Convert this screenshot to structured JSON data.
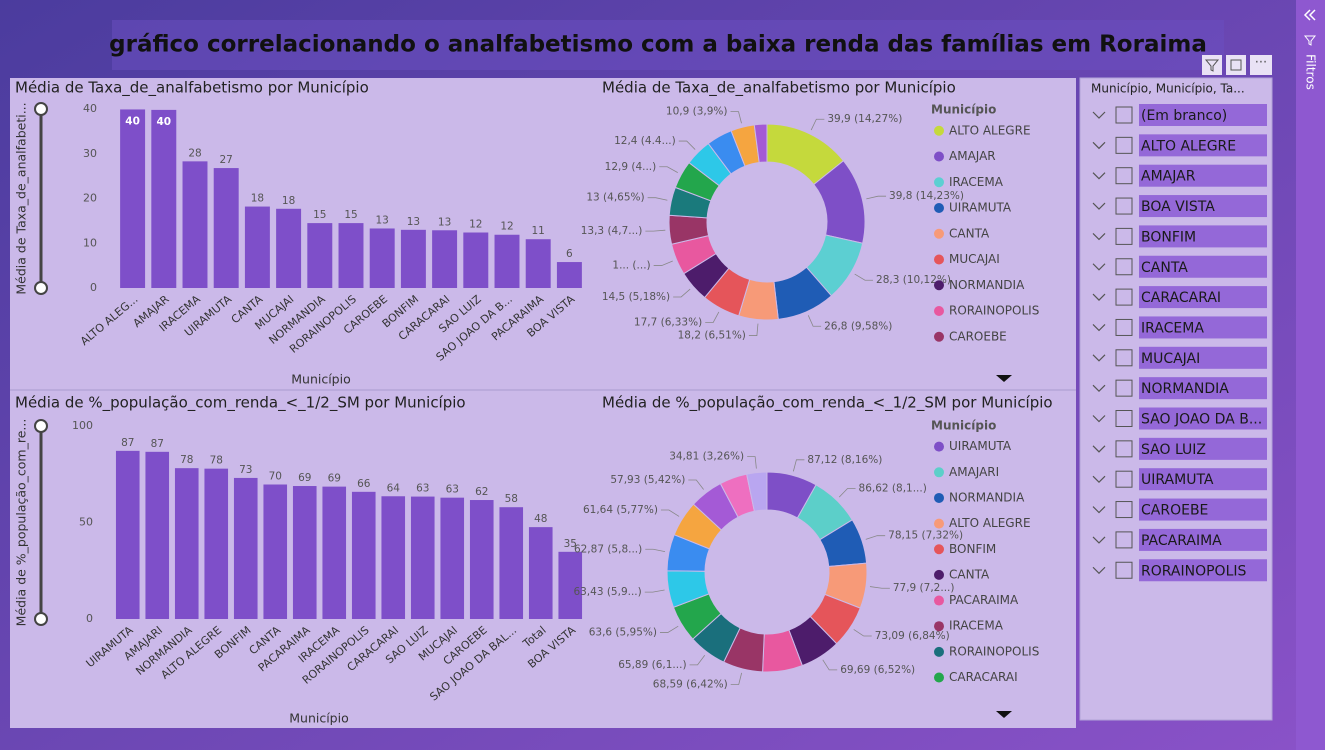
{
  "title": "gráfico correlacionando o analfabetismo com a baixa renda das famílias em Roraima",
  "chart_data": [
    {
      "type": "bar",
      "title": "Média de Taxa_de_analfabetismo por Município",
      "y_label": "Média de Taxa_de_analfabeti...",
      "x_label": "Município",
      "categories": [
        "ALTO ALEG...",
        "AMAJAR",
        "IRACEMA",
        "UIRAMUTA",
        "CANTA",
        "MUCAJAI",
        "NORMANDIA",
        "RORAINOPOLIS",
        "CAROEBE",
        "BONFIM",
        "CARACARAI",
        "SAO LUIZ",
        "SAO JOAO DA B...",
        "PACARAIMA",
        "BOA VISTA"
      ],
      "values": [
        39.9,
        39.8,
        28.3,
        26.8,
        18.2,
        17.7,
        14.5,
        14.5,
        13.3,
        13.0,
        12.9,
        12.4,
        11.9,
        10.9,
        5.8
      ],
      "value_labels": [
        "40",
        "40",
        "28",
        "27",
        "18",
        "18",
        "15",
        "15",
        "13",
        "13",
        "13",
        "12",
        "12",
        "11",
        "6"
      ],
      "color": "#7e4fc9",
      "ylim": [
        0,
        40
      ],
      "yticks": [
        0,
        10,
        20,
        30,
        40
      ]
    },
    {
      "type": "pie",
      "title": "Média de Taxa_de_analfabetismo por Município",
      "legend_title": "Município",
      "categories": [
        "ALTO ALEGRE",
        "AMAJAR",
        "IRACEMA",
        "UIRAMUTA",
        "CANTA",
        "MUCAJAI",
        "NORMANDIA",
        "RORAINOPOLIS",
        "CAROEBE",
        null,
        null,
        null,
        null,
        null,
        null
      ],
      "values": [
        39.9,
        39.8,
        28.3,
        26.8,
        18.2,
        17.7,
        14.5,
        14.5,
        13.3,
        13.0,
        12.9,
        12.4,
        11.9,
        10.9,
        5.8
      ],
      "value_labels": [
        "39,9 (14,27%)",
        "39,8 (14,23%)",
        "28,3 (10,12%)",
        "26,8 (9,58%)",
        "18,2 (6,51%)",
        "17,7 (6,33%)",
        "14,5 (5,18%)",
        "1... (...)",
        "13,3 (4,7...)",
        "13 (4,65%)",
        "12,9 (4...)",
        "12,4 (4.4...)",
        null,
        "10,9 (3,9%)",
        null
      ],
      "colors": [
        "#c5d93c",
        "#7e4fc7",
        "#5ccfd2",
        "#1f5cb5",
        "#f79a78",
        "#e5555a",
        "#4d1c6b",
        "#e8589f",
        "#993566",
        "#1a7a7c",
        "#23a64c",
        "#2dc8e8",
        "#3a8cf0",
        "#f5a540",
        "#a45ad6"
      ]
    },
    {
      "type": "bar",
      "title": "Média de %_população_com_renda_<_1/2_SM por Município",
      "y_label": "Média de %_população_com_re...",
      "x_label": "Município",
      "categories": [
        "UIRAMUTA",
        "AMAJARI",
        "NORMANDIA",
        "ALTO ALEGRE",
        "BONFIM",
        "CANTA",
        "PACARAIMA",
        "IRACEMA",
        "RORAINOPOLIS",
        "CARACARAI",
        "SAO LUIZ",
        "MUCAJAI",
        "CAROEBE",
        "SAO JOAO DA BAL...",
        "Total",
        "BOA VISTA"
      ],
      "values": [
        87.12,
        86.62,
        78.15,
        77.9,
        73.09,
        69.69,
        68.9,
        68.59,
        65.89,
        63.6,
        63.43,
        62.87,
        61.64,
        57.93,
        47.6,
        34.81
      ],
      "value_labels": [
        "87",
        "87",
        "78",
        "78",
        "73",
        "70",
        "69",
        "69",
        "66",
        "64",
        "63",
        "63",
        "62",
        "58",
        "48",
        "35"
      ],
      "color": "#7e4fc9",
      "ylim": [
        0,
        100
      ],
      "yticks": [
        0,
        50,
        100
      ]
    },
    {
      "type": "pie",
      "title": "Média de %_população_com_renda_<_1/2_SM por Município",
      "legend_title": "Município",
      "categories": [
        "UIRAMUTA",
        "AMAJARI",
        "NORMANDIA",
        "ALTO ALEGRE",
        "BONFIM",
        "CANTA",
        "PACARAIMA",
        "IRACEMA",
        "RORAINOPOLIS",
        "CARACARAI",
        null,
        null,
        null,
        null,
        null,
        null
      ],
      "values": [
        87.12,
        86.62,
        78.15,
        77.9,
        73.09,
        69.69,
        68.9,
        68.59,
        65.89,
        63.6,
        63.43,
        62.87,
        61.64,
        57.93,
        47.6,
        34.81
      ],
      "value_labels": [
        "87,12 (8,16%)",
        "86,62 (8,1...)",
        "78,15 (7,32%)",
        "77,9 (7,2...)",
        "73,09 (6,84%)",
        "69,69 (6,52%)",
        null,
        "68,59 (6,42%)",
        "65,89 (6,1...)",
        "63,6 (5,95%)",
        "63,43 (5,9...)",
        "62,87 (5,8...)",
        "61,64 (5,77%)",
        "57,93 (5,42%)",
        null,
        "34,81 (3,26%)"
      ],
      "colors": [
        "#7e4fc7",
        "#5ccfc9",
        "#1f5cb5",
        "#f79a78",
        "#e5555a",
        "#4d1c6b",
        "#e8589f",
        "#993566",
        "#1a6f7c",
        "#23a64c",
        "#2dc8e8",
        "#3a8cf0",
        "#f5a540",
        "#a45ad6",
        "#ee6fc0",
        "#b9a6f0"
      ]
    }
  ],
  "slicer": {
    "header": "Município, Município, Ta...",
    "items": [
      "(Em branco)",
      "ALTO ALEGRE",
      "AMAJAR",
      "BOA VISTA",
      "BONFIM",
      "CANTA",
      "CARACARAI",
      "IRACEMA",
      "MUCAJAI",
      "NORMANDIA",
      "SAO JOAO DA B...",
      "SAO LUIZ",
      "UIRAMUTA",
      "CAROEBE",
      "PACARAIMA",
      "RORAINOPOLIS"
    ]
  },
  "filters_pane": {
    "label": "Filtros"
  }
}
